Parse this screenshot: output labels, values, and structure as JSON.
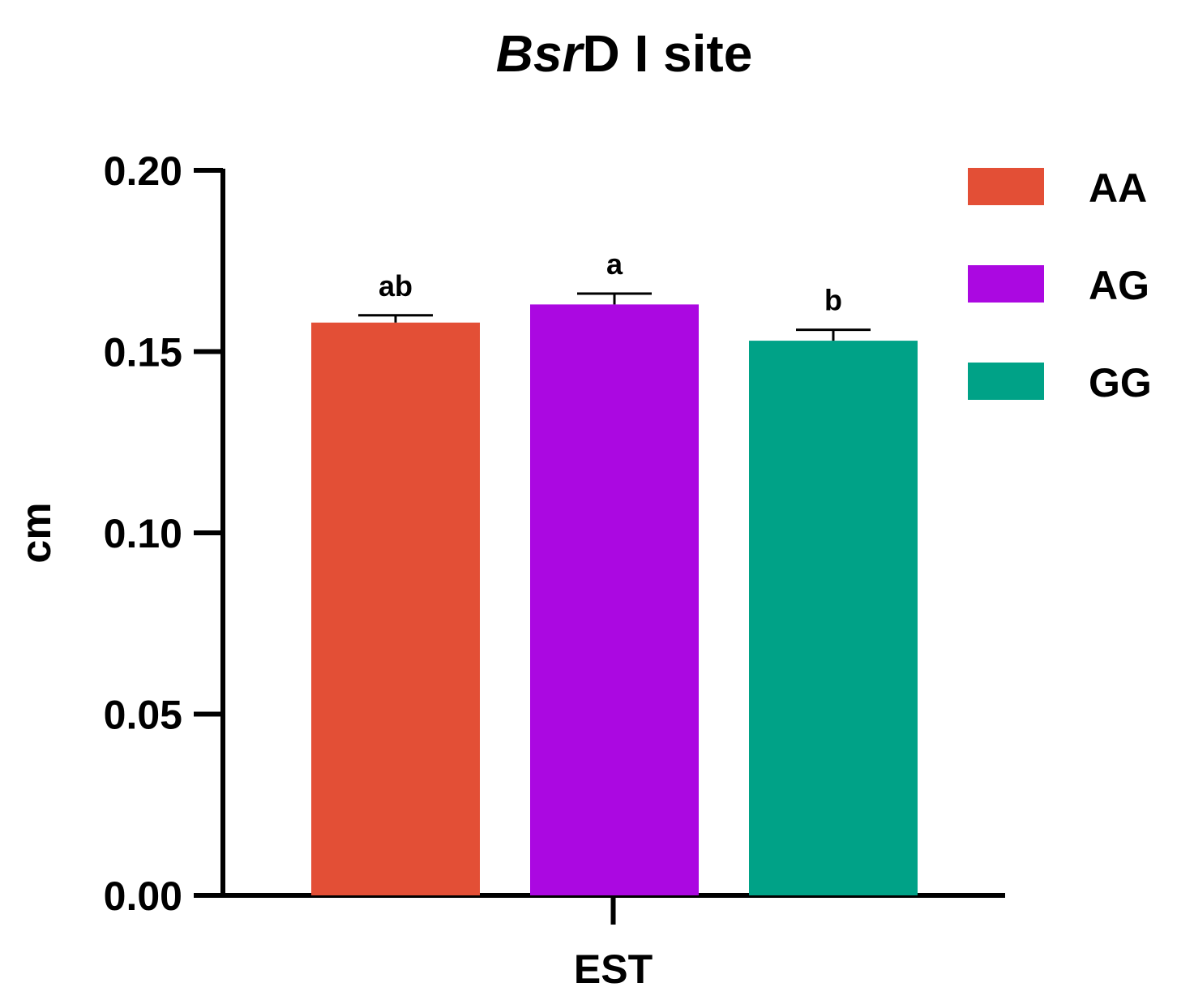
{
  "chart_data": {
    "type": "bar",
    "title_italic": "Bsr",
    "title_rest": "D I site",
    "xlabel": "EST",
    "ylabel": "cm",
    "ylim": [
      0,
      0.2
    ],
    "yticks": [
      "0.00",
      "0.05",
      "0.10",
      "0.15",
      "0.20"
    ],
    "ytick_values": [
      0,
      0.05,
      0.1,
      0.15,
      0.2
    ],
    "categories": [
      "EST"
    ],
    "series": [
      {
        "name": "AA",
        "values": [
          0.158
        ],
        "error": [
          0.002
        ],
        "sig": "ab",
        "color": "#e34f36"
      },
      {
        "name": "AG",
        "values": [
          0.163
        ],
        "error": [
          0.003
        ],
        "sig": "a",
        "color": "#ab08e1"
      },
      {
        "name": "GG",
        "values": [
          0.153
        ],
        "error": [
          0.003
        ],
        "sig": "b",
        "color": "#00a287"
      }
    ]
  }
}
